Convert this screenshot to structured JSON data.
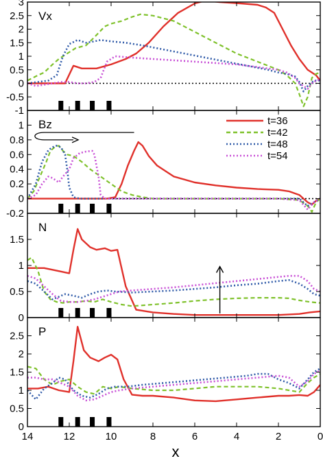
{
  "figure": {
    "xlabel": "x"
  },
  "legend": {
    "placement": "top-right of Bz panel",
    "entries": [
      {
        "label": "t=36",
        "color": "#e0302a",
        "dash": "solid"
      },
      {
        "label": "t=42",
        "color": "#7ec12a",
        "dash": "dashed"
      },
      {
        "label": "t=48",
        "color": "#2f5aa8",
        "dash": "dotted"
      },
      {
        "label": "t=54",
        "color": "#c84fd6",
        "dash": "dotted"
      }
    ]
  },
  "chart_data": [
    {
      "type": "line",
      "panel_label": "Vx",
      "xlim": [
        14,
        0
      ],
      "ylim": [
        -1,
        3
      ],
      "xticks": [
        14,
        12,
        10,
        8,
        6,
        4,
        2,
        0
      ],
      "yticks": [
        -1,
        -0.5,
        0,
        0.5,
        1,
        1.5,
        2,
        2.5,
        3
      ],
      "yticklabels": [
        "-1",
        "-0.5",
        "0",
        "0.5",
        "1",
        "1.5",
        "2",
        "2.5",
        "3"
      ],
      "zero_line": true,
      "markers_x": [
        12.4,
        11.6,
        10.9,
        10.1
      ],
      "series": [
        {
          "name": "t=36",
          "x": [
            14,
            12.9,
            12.2,
            11.8,
            11.4,
            10.7,
            10.0,
            9.3,
            8.8,
            8.2,
            7.5,
            6.8,
            6.0,
            5.5,
            4.8,
            3.8,
            3.0,
            2.6,
            2.2,
            1.8,
            1.4,
            1.0,
            0.6,
            0.2,
            0
          ],
          "y": [
            0,
            0,
            0,
            0.65,
            0.55,
            0.55,
            0.7,
            0.9,
            1.1,
            1.5,
            2.1,
            2.6,
            2.95,
            3.05,
            3.0,
            2.95,
            2.9,
            2.8,
            2.6,
            2.0,
            1.4,
            0.9,
            0.5,
            0.3,
            0.1
          ]
        },
        {
          "name": "t=42",
          "x": [
            14,
            13.5,
            13.2,
            12.8,
            12.5,
            12.1,
            11.7,
            11.2,
            10.8,
            10.3,
            10.0,
            9.5,
            9.0,
            8.6,
            8.0,
            7.0,
            6.0,
            5.0,
            4.0,
            3.0,
            2.0,
            1.6,
            1.2,
            1.0,
            0.8,
            0.6,
            0.4,
            0.2,
            0
          ],
          "y": [
            0.1,
            0.3,
            0.4,
            0.7,
            0.9,
            1.1,
            1.3,
            1.4,
            1.7,
            2.1,
            2.2,
            2.3,
            2.45,
            2.55,
            2.5,
            2.3,
            1.9,
            1.5,
            1.1,
            0.8,
            0.5,
            0.3,
            0.0,
            -0.4,
            -0.85,
            -0.5,
            0.2,
            0.35,
            0.4
          ]
        },
        {
          "name": "t=48",
          "x": [
            14,
            13.5,
            13.0,
            12.6,
            12.3,
            12.0,
            11.6,
            11.2,
            10.8,
            10.5,
            10.0,
            9.3,
            8.5,
            7.5,
            6.5,
            5.5,
            4.5,
            3.5,
            2.5,
            2.0,
            1.6,
            1.2,
            1.0,
            0.8,
            0.6,
            0.3,
            0
          ],
          "y": [
            0,
            0.05,
            0.1,
            0.3,
            1.0,
            1.45,
            1.6,
            1.5,
            1.55,
            1.6,
            1.55,
            1.5,
            1.4,
            1.25,
            1.1,
            0.95,
            0.8,
            0.65,
            0.5,
            0.4,
            0.35,
            0.25,
            0.05,
            -0.3,
            -0.1,
            0.1,
            0.1
          ]
        },
        {
          "name": "t=54",
          "x": [
            14,
            13.6,
            13.2,
            12.8,
            12.4,
            12.0,
            11.6,
            11.2,
            10.8,
            10.5,
            10.2,
            9.8,
            9.0,
            8.0,
            7.0,
            6.0,
            5.0,
            4.0,
            3.0,
            2.0,
            1.6,
            1.2,
            1.0,
            0.8,
            0.6,
            0.4,
            0.2,
            0
          ],
          "y": [
            0,
            -0.1,
            -0.05,
            0.0,
            0.05,
            0.05,
            0.0,
            0.0,
            0.05,
            0.2,
            0.8,
            1.0,
            0.95,
            0.9,
            0.85,
            0.8,
            0.75,
            0.7,
            0.6,
            0.5,
            0.4,
            0.2,
            0.0,
            -0.1,
            -0.2,
            0.0,
            0.1,
            0.15
          ]
        }
      ]
    },
    {
      "type": "line",
      "panel_label": "Bz",
      "xlim": [
        14,
        0
      ],
      "ylim": [
        -0.2,
        1.2
      ],
      "xticks": [
        14,
        12,
        10,
        8,
        6,
        4,
        2,
        0
      ],
      "yticks": [
        -0.2,
        0,
        0.2,
        0.4,
        0.6,
        0.8,
        1
      ],
      "yticklabels": [
        "-0.2",
        "0",
        "0.2",
        "0.4",
        "0.6",
        "0.8",
        "1"
      ],
      "zero_line": true,
      "markers_x": [
        12.4,
        11.6,
        10.9,
        10.1
      ],
      "series": [
        {
          "name": "t=36",
          "x": [
            14,
            12.0,
            11.0,
            10.2,
            9.8,
            9.5,
            9.2,
            8.9,
            8.7,
            8.5,
            8.2,
            7.8,
            7.0,
            6.0,
            5.0,
            4.0,
            3.0,
            2.0,
            1.5,
            1.0,
            0.8,
            0.6,
            0.4,
            0.2,
            0
          ],
          "y": [
            0,
            0,
            0,
            0,
            0.02,
            0.2,
            0.45,
            0.65,
            0.77,
            0.72,
            0.58,
            0.45,
            0.3,
            0.22,
            0.18,
            0.15,
            0.13,
            0.12,
            0.1,
            0.05,
            0.0,
            -0.05,
            -0.08,
            -0.03,
            0.0
          ]
        },
        {
          "name": "t=42",
          "x": [
            14,
            13.7,
            13.4,
            13.1,
            12.9,
            12.7,
            12.5,
            12.3,
            12.1,
            11.8,
            11.4,
            11.0,
            10.5,
            10.0,
            9.5,
            9.0,
            8.5,
            8.0,
            7.0,
            6.0,
            4.0,
            2.0,
            1.0,
            0.6,
            0.4,
            0.2,
            0
          ],
          "y": [
            0,
            0.1,
            0.3,
            0.5,
            0.65,
            0.7,
            0.72,
            0.65,
            0.6,
            0.58,
            0.5,
            0.4,
            0.3,
            0.2,
            0.1,
            0.05,
            0.02,
            0.0,
            0.0,
            0.0,
            0.0,
            0.0,
            -0.02,
            -0.1,
            -0.18,
            -0.05,
            0.0
          ]
        },
        {
          "name": "t=48",
          "x": [
            14,
            13.6,
            13.3,
            13.0,
            12.8,
            12.6,
            12.4,
            12.2,
            12.1,
            12.0,
            11.8,
            11.5,
            11.0,
            10.0,
            8.0,
            6.0,
            4.0,
            2.0,
            1.0,
            0.6,
            0.3,
            0
          ],
          "y": [
            0,
            0.2,
            0.5,
            0.66,
            0.7,
            0.72,
            0.7,
            0.6,
            0.4,
            0.15,
            0.02,
            0.0,
            0.0,
            0.0,
            0.0,
            0.0,
            0.0,
            0.0,
            0.0,
            -0.1,
            -0.05,
            0.0
          ]
        },
        {
          "name": "t=54",
          "x": [
            14,
            13.6,
            13.3,
            13.0,
            12.8,
            12.5,
            12.3,
            12.0,
            11.8,
            11.5,
            11.2,
            10.9,
            10.8,
            10.6,
            10.5,
            10.3,
            10.0,
            8.0,
            6.0,
            4.0,
            2.0,
            1.0,
            0.6,
            0.3,
            0
          ],
          "y": [
            0,
            0.05,
            0.2,
            0.3,
            0.28,
            0.22,
            0.3,
            0.4,
            0.55,
            0.62,
            0.64,
            0.65,
            0.6,
            0.3,
            0.05,
            0.0,
            0.0,
            0.0,
            0.0,
            0.0,
            0.0,
            -0.02,
            -0.15,
            -0.05,
            0.0
          ]
        }
      ]
    },
    {
      "type": "line",
      "panel_label": "N",
      "xlim": [
        14,
        0
      ],
      "ylim": [
        0,
        2
      ],
      "xticks": [
        14,
        12,
        10,
        8,
        6,
        4,
        2,
        0
      ],
      "yticks": [
        0,
        0.5,
        1,
        1.5
      ],
      "yticklabels": [
        "0",
        "0.5",
        "1",
        "1.5"
      ],
      "zero_line": false,
      "markers_x": [
        12.4,
        11.6,
        10.9,
        10.1
      ],
      "series": [
        {
          "name": "t=36",
          "x": [
            14,
            13.2,
            12.6,
            12.0,
            11.8,
            11.6,
            11.4,
            11.0,
            10.7,
            10.3,
            10.0,
            9.7,
            9.3,
            8.8,
            8.0,
            7.0,
            6.0,
            4.0,
            2.0,
            1.0,
            0.5,
            0
          ],
          "y": [
            0.95,
            0.95,
            0.9,
            0.85,
            1.3,
            1.7,
            1.5,
            1.35,
            1.3,
            1.33,
            1.28,
            1.3,
            0.6,
            0.15,
            0.1,
            0.07,
            0.05,
            0.05,
            0.05,
            0.07,
            0.1,
            0.12
          ]
        },
        {
          "name": "t=42",
          "x": [
            14,
            13.8,
            13.5,
            13.2,
            12.9,
            12.6,
            12.3,
            12.0,
            11.6,
            11.2,
            10.8,
            10.4,
            10.0,
            9.5,
            9.0,
            8.0,
            7.0,
            6.0,
            5.0,
            4.0,
            3.0,
            2.0,
            1.5,
            1.0,
            0.5,
            0
          ],
          "y": [
            1.1,
            1.15,
            0.9,
            0.5,
            0.35,
            0.3,
            0.28,
            0.3,
            0.3,
            0.32,
            0.3,
            0.35,
            0.3,
            0.25,
            0.22,
            0.25,
            0.28,
            0.32,
            0.35,
            0.37,
            0.38,
            0.38,
            0.37,
            0.33,
            0.3,
            0.28
          ]
        },
        {
          "name": "t=48",
          "x": [
            14,
            13.6,
            13.2,
            12.8,
            12.5,
            12.2,
            11.8,
            11.4,
            11.0,
            10.6,
            10.2,
            9.8,
            9.0,
            8.0,
            7.0,
            6.0,
            5.0,
            4.0,
            3.0,
            2.0,
            1.5,
            1.0,
            0.6,
            0.3,
            0
          ],
          "y": [
            0.7,
            0.65,
            0.5,
            0.35,
            0.4,
            0.45,
            0.42,
            0.38,
            0.45,
            0.5,
            0.52,
            0.5,
            0.48,
            0.5,
            0.52,
            0.55,
            0.58,
            0.62,
            0.65,
            0.7,
            0.72,
            0.65,
            0.55,
            0.45,
            0.42
          ]
        },
        {
          "name": "t=54",
          "x": [
            14,
            13.6,
            13.2,
            12.8,
            12.4,
            12.0,
            11.6,
            11.2,
            10.8,
            10.4,
            10.0,
            9.6,
            9.0,
            8.0,
            7.0,
            6.0,
            5.0,
            4.0,
            3.0,
            2.0,
            1.5,
            1.0,
            0.6,
            0.3,
            0
          ],
          "y": [
            0.8,
            0.75,
            0.6,
            0.45,
            0.32,
            0.3,
            0.3,
            0.32,
            0.35,
            0.4,
            0.45,
            0.5,
            0.52,
            0.55,
            0.58,
            0.62,
            0.66,
            0.7,
            0.74,
            0.78,
            0.8,
            0.8,
            0.7,
            0.55,
            0.5
          ]
        }
      ]
    },
    {
      "type": "line",
      "panel_label": "P",
      "xlim": [
        14,
        0
      ],
      "ylim": [
        0,
        3
      ],
      "xticks": [
        14,
        12,
        10,
        8,
        6,
        4,
        2,
        0
      ],
      "yticks": [
        0,
        0.5,
        1,
        1.5,
        2,
        2.5
      ],
      "yticklabels": [
        "0",
        "0.5",
        "1",
        "1.5",
        "2",
        "2.5"
      ],
      "zero_line": false,
      "markers_x": [
        12.4,
        11.6,
        10.9,
        10.1
      ],
      "series": [
        {
          "name": "t=36",
          "x": [
            14,
            13.5,
            13.0,
            12.5,
            12.0,
            11.8,
            11.6,
            11.3,
            11.0,
            10.6,
            10.3,
            10.0,
            9.7,
            9.4,
            9.0,
            8.5,
            8.0,
            7.0,
            6.0,
            5.0,
            4.0,
            3.0,
            2.0,
            1.5,
            1.0,
            0.6,
            0.3,
            0
          ],
          "y": [
            1.05,
            1.05,
            1.1,
            1.0,
            0.95,
            1.8,
            2.75,
            2.1,
            1.9,
            1.8,
            1.9,
            1.98,
            1.85,
            1.3,
            0.88,
            0.85,
            0.85,
            0.8,
            0.72,
            0.7,
            0.75,
            0.8,
            0.85,
            0.85,
            0.87,
            0.85,
            0.95,
            1.15
          ]
        },
        {
          "name": "t=42",
          "x": [
            14,
            13.6,
            13.2,
            12.8,
            12.4,
            12.0,
            11.6,
            11.2,
            10.8,
            10.4,
            10.0,
            9.6,
            9.0,
            8.0,
            7.0,
            6.0,
            5.0,
            4.0,
            3.0,
            2.0,
            1.5,
            1.0,
            0.6,
            0.3,
            0
          ],
          "y": [
            1.65,
            1.6,
            1.3,
            1.15,
            1.25,
            1.3,
            1.1,
            0.95,
            0.9,
            1.1,
            1.05,
            1.1,
            1.05,
            1.0,
            1.0,
            1.05,
            1.1,
            1.1,
            1.1,
            1.05,
            1.0,
            0.95,
            1.2,
            1.35,
            1.45
          ]
        },
        {
          "name": "t=48",
          "x": [
            14,
            13.6,
            13.2,
            12.8,
            12.5,
            12.2,
            11.8,
            11.4,
            11.0,
            10.6,
            10.2,
            9.8,
            9.2,
            8.5,
            7.5,
            6.5,
            5.5,
            4.5,
            3.5,
            3.0,
            2.5,
            2.0,
            1.5,
            1.0,
            0.6,
            0.3,
            0
          ],
          "y": [
            1.0,
            0.75,
            1.05,
            1.2,
            1.35,
            1.3,
            1.0,
            0.85,
            0.8,
            0.9,
            1.05,
            1.1,
            1.1,
            1.15,
            1.2,
            1.25,
            1.3,
            1.35,
            1.4,
            1.45,
            1.45,
            1.3,
            1.2,
            1.05,
            1.3,
            1.5,
            1.6
          ]
        },
        {
          "name": "t=54",
          "x": [
            14,
            13.6,
            13.2,
            12.8,
            12.4,
            12.0,
            11.6,
            11.2,
            10.8,
            10.4,
            10.0,
            9.6,
            9.0,
            8.0,
            7.0,
            6.0,
            5.0,
            4.0,
            3.0,
            2.0,
            1.5,
            1.0,
            0.6,
            0.3,
            0
          ],
          "y": [
            1.35,
            1.35,
            1.3,
            1.3,
            1.2,
            1.1,
            0.85,
            0.72,
            0.75,
            0.85,
            0.95,
            1.0,
            1.05,
            1.1,
            1.15,
            1.2,
            1.25,
            1.3,
            1.35,
            1.4,
            1.35,
            1.1,
            1.25,
            1.45,
            1.55
          ]
        }
      ]
    }
  ]
}
